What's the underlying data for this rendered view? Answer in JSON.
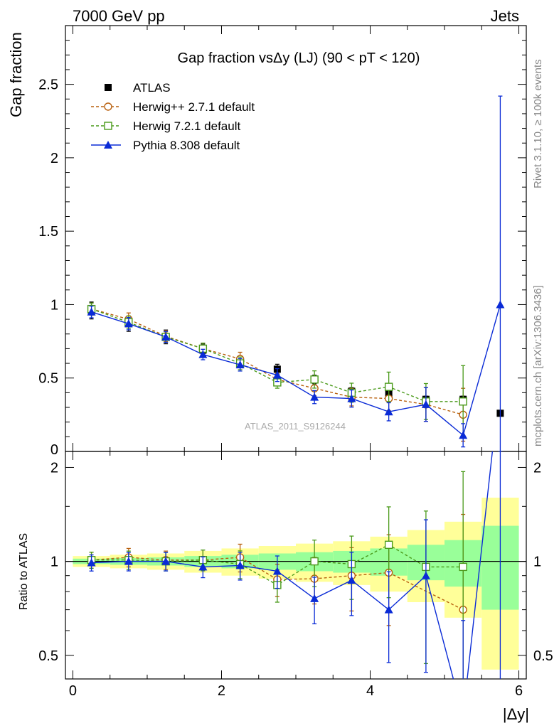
{
  "header": {
    "left": "7000 GeV pp",
    "right": "Jets"
  },
  "side_labels": {
    "rivet": "Rivet 3.1.10, ≥ 100k events",
    "mcplots": "mcplots.cern.ch [arXiv:1306.3436]"
  },
  "chart_data": {
    "type": "line",
    "title": "Gap fraction vsΔy (LJ) (90 < pT < 120)",
    "watermark": "ATLAS_2011_S9126244",
    "xlabel": "|Δy|",
    "ylabel": "Gap fraction",
    "ratio_ylabel": "Ratio to ATLAS",
    "xlim": [
      -0.1,
      6.1
    ],
    "ylim": [
      0,
      2.9
    ],
    "ratio_ylim": [
      0.42,
      2.25
    ],
    "ratio_log_scale": true,
    "xticks": [
      "0",
      "2",
      "4",
      "6"
    ],
    "yticks": [
      "0.5",
      "1",
      "1.5",
      "2",
      "2.5"
    ],
    "ratio_yticks": [
      "0.5",
      "1",
      "2"
    ],
    "legend_placement": "top-left",
    "x": [
      0.25,
      0.75,
      1.25,
      1.75,
      2.25,
      2.75,
      3.25,
      3.75,
      4.25,
      4.75,
      5.25,
      5.75
    ],
    "series": [
      {
        "name": "ATLAS",
        "style": "data",
        "color": "#000000",
        "values": [
          0.96,
          0.87,
          0.78,
          0.69,
          0.61,
          0.56,
          0.49,
          0.41,
          0.39,
          0.355,
          0.355,
          0.26
        ]
      },
      {
        "name": "Herwig++ 2.7.1 default",
        "style": "dashed-circle",
        "color": "#b8600e",
        "values": [
          0.97,
          0.9,
          0.785,
          0.7,
          0.63,
          0.49,
          0.43,
          0.37,
          0.36,
          0.32,
          0.25,
          null
        ],
        "ratio": [
          1.01,
          1.03,
          1.01,
          1.01,
          1.03,
          0.875,
          0.88,
          0.9,
          0.92,
          null,
          0.7,
          null
        ]
      },
      {
        "name": "Herwig 7.2.1 default",
        "style": "dashed-square",
        "color": "#4a9a1a",
        "values": [
          0.97,
          0.88,
          0.78,
          0.7,
          0.6,
          0.47,
          0.49,
          0.4,
          0.44,
          0.34,
          0.34,
          null
        ],
        "ratio": [
          1.01,
          1.01,
          1.0,
          1.01,
          0.98,
          0.84,
          1.0,
          0.98,
          1.13,
          0.96,
          0.96,
          null
        ]
      },
      {
        "name": "Pythia 8.308 default",
        "style": "solid-triangle",
        "color": "#0a2bd6",
        "values": [
          0.95,
          0.87,
          0.78,
          0.66,
          0.59,
          0.52,
          0.37,
          0.36,
          0.27,
          0.32,
          0.11,
          1.0
        ],
        "ratio": [
          0.99,
          1.0,
          1.0,
          0.96,
          0.97,
          0.93,
          0.76,
          0.87,
          0.7,
          0.9,
          0.32,
          3.8
        ]
      }
    ],
    "colors": {
      "band_inner": "#99ff99",
      "band_outer": "#ffff99"
    }
  }
}
